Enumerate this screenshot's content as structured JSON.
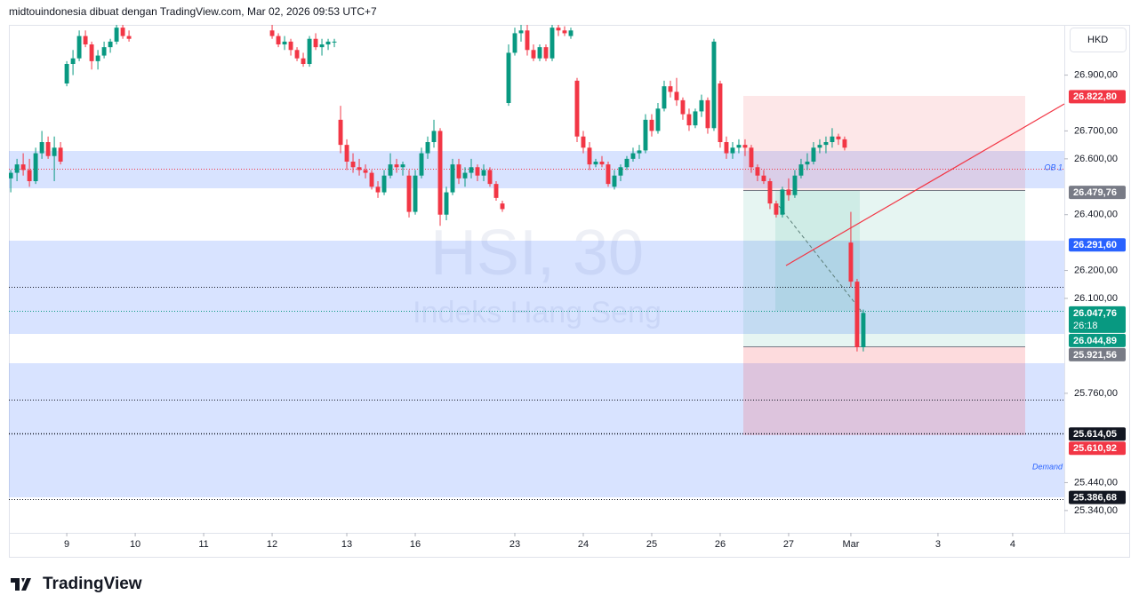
{
  "chart_data": {
    "type": "candlestick",
    "header": "midtouindonesia dibuat dengan TradingView.com, Mar 02, 2026 09:53 UTC+7",
    "symbol": "HSI, 30",
    "description": "Indeks Hang Seng",
    "currency": "HKD",
    "brand": "TradingView",
    "annotations": [
      "OB 1",
      "Demand"
    ],
    "up_color": "#089981",
    "down_color": "#f23645",
    "xlim": [
      -0.3,
      169.3
    ],
    "ylim": [
      25260,
      27080
    ],
    "xticks": [
      {
        "value": 9,
        "label": "9"
      },
      {
        "value": 20,
        "label": "10"
      },
      {
        "value": 31,
        "label": "11"
      },
      {
        "value": 42,
        "label": "12"
      },
      {
        "value": 54,
        "label": "13"
      },
      {
        "value": 65,
        "label": "16"
      },
      {
        "value": 81,
        "label": "23"
      },
      {
        "value": 92,
        "label": "24"
      },
      {
        "value": 103,
        "label": "25"
      },
      {
        "value": 114,
        "label": "26"
      },
      {
        "value": 125,
        "label": "27"
      },
      {
        "value": 135,
        "label": "Mar"
      },
      {
        "value": 149,
        "label": "3"
      },
      {
        "value": 161,
        "label": "4"
      }
    ],
    "yticks": [
      {
        "value": 26900,
        "label": "26.900,00"
      },
      {
        "value": 26700,
        "label": "26.700,00"
      },
      {
        "value": 26600,
        "label": "26.600,00"
      },
      {
        "value": 26400,
        "label": "26.400,00"
      },
      {
        "value": 26200,
        "label": "26.200,00"
      },
      {
        "value": 26100,
        "label": "26.100,00"
      },
      {
        "value": 25760,
        "label": "25.760,00"
      },
      {
        "value": 25440,
        "label": "25.440,00"
      },
      {
        "value": 25340,
        "label": "25.340,00"
      }
    ],
    "price_labels": [
      {
        "value": 26822.8,
        "label": "26.822,80",
        "color": "#f23645"
      },
      {
        "value": 26479.76,
        "label": "26.479,76",
        "color": "#787b86"
      },
      {
        "value": 26291.6,
        "label": "26.291,60",
        "color": "#2962ff"
      },
      {
        "value": 26047.76,
        "label": "26.047,76",
        "color": "#089981",
        "countdown": "26:18"
      },
      {
        "value": 26044.89,
        "label": "26.044,89",
        "color": "#089981"
      },
      {
        "value": 25921.56,
        "label": "25.921,56",
        "color": "#787b86"
      },
      {
        "value": 25614.05,
        "label": "25.614,05",
        "color": "#131722"
      },
      {
        "value": 25610.92,
        "label": "25.610,92",
        "color": "#f23645"
      },
      {
        "value": 25386.68,
        "label": "25.386,68",
        "color": "#131722"
      }
    ],
    "open": [
      26530,
      26550,
      26580,
      26560,
      26520,
      26620,
      26660,
      26610,
      26640,
      26870,
      26940,
      26960,
      27040,
      27010,
      26950,
      26970,
      27000,
      27020,
      27070,
      27040,
      null,
      null,
      null,
      null,
      null,
      null,
      null,
      null,
      null,
      null,
      null,
      null,
      null,
      null,
      null,
      null,
      null,
      null,
      null,
      null,
      null,
      null,
      27060,
      27040,
      27010,
      27020,
      26990,
      26960,
      26940,
      27030,
      27000,
      27010,
      27020,
      26740,
      26650,
      26590,
      26570,
      26560,
      26550,
      26500,
      26480,
      26540,
      26580,
      26570,
      26540,
      26410,
      26540,
      26620,
      26660,
      26700,
      26400,
      26480,
      26580,
      26530,
      26550,
      26570,
      26540,
      26560,
      26510,
      26440,
      26800,
      26980,
      27050,
      27060,
      26990,
      26960,
      27000,
      26960,
      27070,
      27060,
      27040,
      26880,
      26680,
      26640,
      26580,
      26590,
      26580,
      26500,
      26540,
      26570,
      26600,
      26620,
      26630,
      26740,
      26700,
      26780,
      26860,
      26840,
      26810,
      26760,
      26720,
      26770,
      26810,
      26710,
      26870,
      26660,
      26620,
      26640,
      26650,
      26640,
      26570,
      26540,
      26520,
      26440,
      26400,
      26490,
      26470,
      26540,
      26580,
      26590,
      26640,
      26650,
      26660,
      26680,
      26670,
      26300,
      26160,
      25925
    ],
    "high": [
      26560,
      26600,
      26620,
      26600,
      26640,
      26700,
      26680,
      26680,
      26660,
      26950,
      26990,
      27060,
      27060,
      27020,
      26990,
      27020,
      27030,
      27080,
      27080,
      27060,
      null,
      null,
      null,
      null,
      null,
      null,
      null,
      null,
      null,
      null,
      null,
      null,
      null,
      null,
      null,
      null,
      null,
      null,
      null,
      null,
      null,
      null,
      27080,
      27050,
      27040,
      27030,
      27000,
      26980,
      27040,
      27050,
      27030,
      27030,
      27030,
      26790,
      26670,
      26620,
      26600,
      26580,
      26560,
      26520,
      26560,
      26620,
      26600,
      26590,
      26560,
      26560,
      26640,
      26680,
      26740,
      26710,
      26500,
      26600,
      26600,
      26570,
      26600,
      26580,
      26580,
      26570,
      26520,
      26450,
      27010,
      27070,
      27080,
      27080,
      27010,
      27010,
      27010,
      27080,
      27080,
      27075,
      27070,
      26890,
      26700,
      26660,
      26600,
      26610,
      26590,
      26560,
      26580,
      26610,
      26640,
      26650,
      26760,
      26760,
      26800,
      26880,
      26880,
      26890,
      26820,
      26780,
      26780,
      26830,
      26820,
      27030,
      26880,
      26680,
      26660,
      26670,
      26670,
      26650,
      26580,
      26560,
      26530,
      26450,
      26500,
      26530,
      26560,
      26600,
      26620,
      26660,
      26670,
      26680,
      26710,
      26690,
      26680,
      26410,
      26170,
      26060
    ],
    "low": [
      26480,
      26520,
      26540,
      26500,
      26510,
      26600,
      26600,
      26520,
      26580,
      26860,
      26900,
      26950,
      27000,
      26920,
      26920,
      26960,
      26980,
      27010,
      27030,
      27020,
      null,
      null,
      null,
      null,
      null,
      null,
      null,
      null,
      null,
      null,
      null,
      null,
      null,
      null,
      null,
      null,
      null,
      null,
      null,
      null,
      null,
      null,
      27030,
      27000,
      26990,
      26970,
      26950,
      26930,
      26930,
      26990,
      26970,
      26990,
      27000,
      26620,
      26560,
      26550,
      26540,
      26530,
      26490,
      26460,
      26470,
      26530,
      26550,
      26540,
      26390,
      26400,
      26530,
      26600,
      26640,
      26360,
      26380,
      26470,
      26510,
      26500,
      26530,
      26520,
      26520,
      26500,
      26450,
      26410,
      26790,
      26970,
      27020,
      26970,
      26950,
      26950,
      26950,
      26950,
      27040,
      27040,
      27030,
      26660,
      26620,
      26560,
      26570,
      26570,
      26500,
      26490,
      26520,
      26560,
      26590,
      26600,
      26620,
      26680,
      26690,
      26770,
      26820,
      26790,
      26740,
      26700,
      26710,
      26750,
      26690,
      26700,
      26640,
      26600,
      26600,
      26620,
      26610,
      26550,
      26520,
      26510,
      26420,
      26390,
      26390,
      26450,
      26460,
      26530,
      26560,
      26580,
      26620,
      26620,
      26640,
      26650,
      26630,
      26140,
      25910,
      25910
    ],
    "close": [
      26550,
      26580,
      26560,
      26520,
      26620,
      26660,
      26610,
      26640,
      26590,
      26940,
      26960,
      27040,
      27010,
      26950,
      26970,
      27000,
      27020,
      27070,
      27040,
      27030,
      null,
      null,
      null,
      null,
      null,
      null,
      null,
      null,
      null,
      null,
      null,
      null,
      null,
      null,
      null,
      null,
      null,
      null,
      null,
      null,
      null,
      null,
      27040,
      27010,
      27020,
      26990,
      26960,
      26940,
      27030,
      27000,
      27010,
      27020,
      27020,
      26650,
      26590,
      26570,
      26560,
      26550,
      26500,
      26480,
      26540,
      26580,
      26570,
      26580,
      26410,
      26540,
      26620,
      26660,
      26700,
      26400,
      26480,
      26580,
      26530,
      26550,
      26570,
      26540,
      26560,
      26510,
      26460,
      26420,
      26980,
      27050,
      27060,
      26990,
      26960,
      27000,
      26960,
      27070,
      27060,
      27050,
      27060,
      26680,
      26640,
      26580,
      26590,
      26580,
      26510,
      26540,
      26570,
      26600,
      26620,
      26630,
      26740,
      26700,
      26780,
      26860,
      26840,
      26810,
      26760,
      26720,
      26770,
      26810,
      26710,
      27020,
      26660,
      26620,
      26640,
      26650,
      26640,
      26570,
      26540,
      26520,
      26440,
      26400,
      26490,
      26470,
      26540,
      26580,
      26590,
      26640,
      26650,
      26660,
      26680,
      26670,
      26640,
      26160,
      25925,
      26048
    ]
  }
}
